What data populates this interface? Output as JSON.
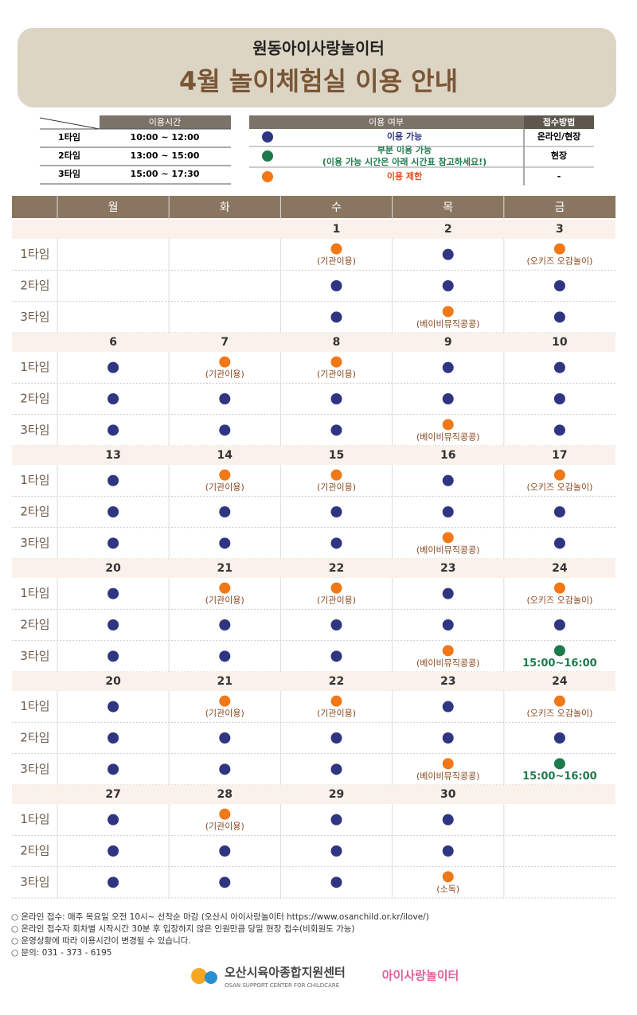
{
  "header": {
    "org": "원동아이사랑놀이터",
    "title": "4월 놀이체험실 이용 안내"
  },
  "time_table": {
    "header": "이용시간",
    "rows": [
      [
        "1타임",
        "10:00 ~ 12:00"
      ],
      [
        "2타임",
        "13:00 ~ 15:00"
      ],
      [
        "3타임",
        "15:00 ~ 17:30"
      ]
    ]
  },
  "legend": {
    "header": "이용 여부",
    "method_header": "접수방법",
    "items": [
      {
        "label": "이용 가능",
        "color": "#2f3580",
        "text_color": "#2f3580",
        "method": "온라인/현장"
      },
      {
        "label": "부분 이용 가능",
        "note": "(이용 가능 시간은 아래 시간표 참고하세요!)",
        "color": "#1e7a4c",
        "text_color": "#1e7a4c",
        "method": "현장"
      },
      {
        "label": "이용 제한",
        "color": "#f07818",
        "text_color": "#e0501a",
        "method": "-"
      }
    ]
  },
  "calendar": {
    "days": [
      "월",
      "화",
      "수",
      "목",
      "금"
    ],
    "slot_labels": [
      "1타임",
      "2타임",
      "3타임"
    ],
    "weeks": [
      {
        "dates": [
          null,
          null,
          1,
          2,
          3
        ],
        "cells": [
          [
            null,
            null,
            null
          ],
          [
            null,
            null,
            null
          ],
          [
            [
              2,
              "(기관이용)"
            ],
            [
              0
            ],
            [
              0
            ]
          ],
          [
            [
              0
            ],
            [
              0
            ],
            [
              2,
              "(베이비뮤직콩콩)"
            ]
          ],
          [
            [
              2,
              "(오키즈 오감놀이)"
            ],
            [
              0
            ],
            [
              0
            ]
          ]
        ]
      },
      {
        "dates": [
          6,
          7,
          8,
          9,
          10
        ],
        "cells": [
          [
            [
              0
            ],
            [
              0
            ],
            [
              0
            ]
          ],
          [
            [
              2,
              "(기관이용)"
            ],
            [
              0
            ],
            [
              0
            ]
          ],
          [
            [
              2,
              "(기관이용)"
            ],
            [
              0
            ],
            [
              0
            ]
          ],
          [
            [
              0
            ],
            [
              0
            ],
            [
              2,
              "(베이비뮤직콩콩)"
            ]
          ],
          [
            [
              0
            ],
            [
              0
            ],
            [
              0
            ]
          ]
        ]
      },
      {
        "dates": [
          13,
          14,
          15,
          16,
          17
        ],
        "cells": [
          [
            [
              0
            ],
            [
              0
            ],
            [
              0
            ]
          ],
          [
            [
              2,
              "(기관이용)"
            ],
            [
              0
            ],
            [
              0
            ]
          ],
          [
            [
              2,
              "(기관이용)"
            ],
            [
              0
            ],
            [
              0
            ]
          ],
          [
            [
              0
            ],
            [
              0
            ],
            [
              2,
              "(베이비뮤직콩콩)"
            ]
          ],
          [
            [
              2,
              "(오키즈 오감놀이)"
            ],
            [
              0
            ],
            [
              0
            ]
          ]
        ]
      },
      {
        "dates": [
          20,
          21,
          22,
          23,
          24
        ],
        "cells": [
          [
            [
              0
            ],
            [
              0
            ],
            [
              0
            ]
          ],
          [
            [
              2,
              "(기관이용)"
            ],
            [
              0
            ],
            [
              0
            ]
          ],
          [
            [
              2,
              "(기관이용)"
            ],
            [
              0
            ],
            [
              0
            ]
          ],
          [
            [
              0
            ],
            [
              0
            ],
            [
              2,
              "(베이비뮤직콩콩)"
            ]
          ],
          [
            [
              2,
              "(오키즈 오감놀이)"
            ],
            [
              0
            ],
            [
              1,
              "15:00~16:00"
            ]
          ]
        ]
      },
      {
        "dates": [
          20,
          21,
          22,
          23,
          24
        ],
        "cells": [
          [
            [
              0
            ],
            [
              0
            ],
            [
              0
            ]
          ],
          [
            [
              2,
              "(기관이용)"
            ],
            [
              0
            ],
            [
              0
            ]
          ],
          [
            [
              2,
              "(기관이용)"
            ],
            [
              0
            ],
            [
              0
            ]
          ],
          [
            [
              0
            ],
            [
              0
            ],
            [
              2,
              "(베이비뮤직콩콩)"
            ]
          ],
          [
            [
              2,
              "(오키즈 오감놀이)"
            ],
            [
              0
            ],
            [
              1,
              "15:00~16:00"
            ]
          ]
        ]
      },
      {
        "dates": [
          27,
          28,
          29,
          30,
          null
        ],
        "cells": [
          [
            [
              0
            ],
            [
              0
            ],
            [
              0
            ]
          ],
          [
            [
              2,
              "(기관이용)"
            ],
            [
              0
            ],
            [
              0
            ]
          ],
          [
            [
              0
            ],
            [
              0
            ],
            [
              0
            ]
          ],
          [
            [
              0
            ],
            [
              0
            ],
            [
              2,
              "(소독)"
            ]
          ],
          [
            null,
            null,
            null
          ]
        ]
      }
    ]
  },
  "notes": [
    "○ 온라인 접수: 매주 목요일 오전 10시~ 선착순 마감 (오산시 아이사랑놀이터 https://www.osanchild.or.kr/ilove/)",
    "○ 온라인 접수자 회차별 시작시간 30분 후 입장하지 않은 인원만큼 당일 현장 접수(비회원도 가능)",
    "○ 운영상황에 따라 이용시간이 변경될 수 있습니다.",
    "○ 문의: 031 - 373 - 6195"
  ],
  "footer": {
    "center": "오산시육아종합지원센터",
    "center_en": "OSAN SUPPORT CENTER FOR CHILDCARE",
    "brand": "아이사랑놀이터"
  }
}
